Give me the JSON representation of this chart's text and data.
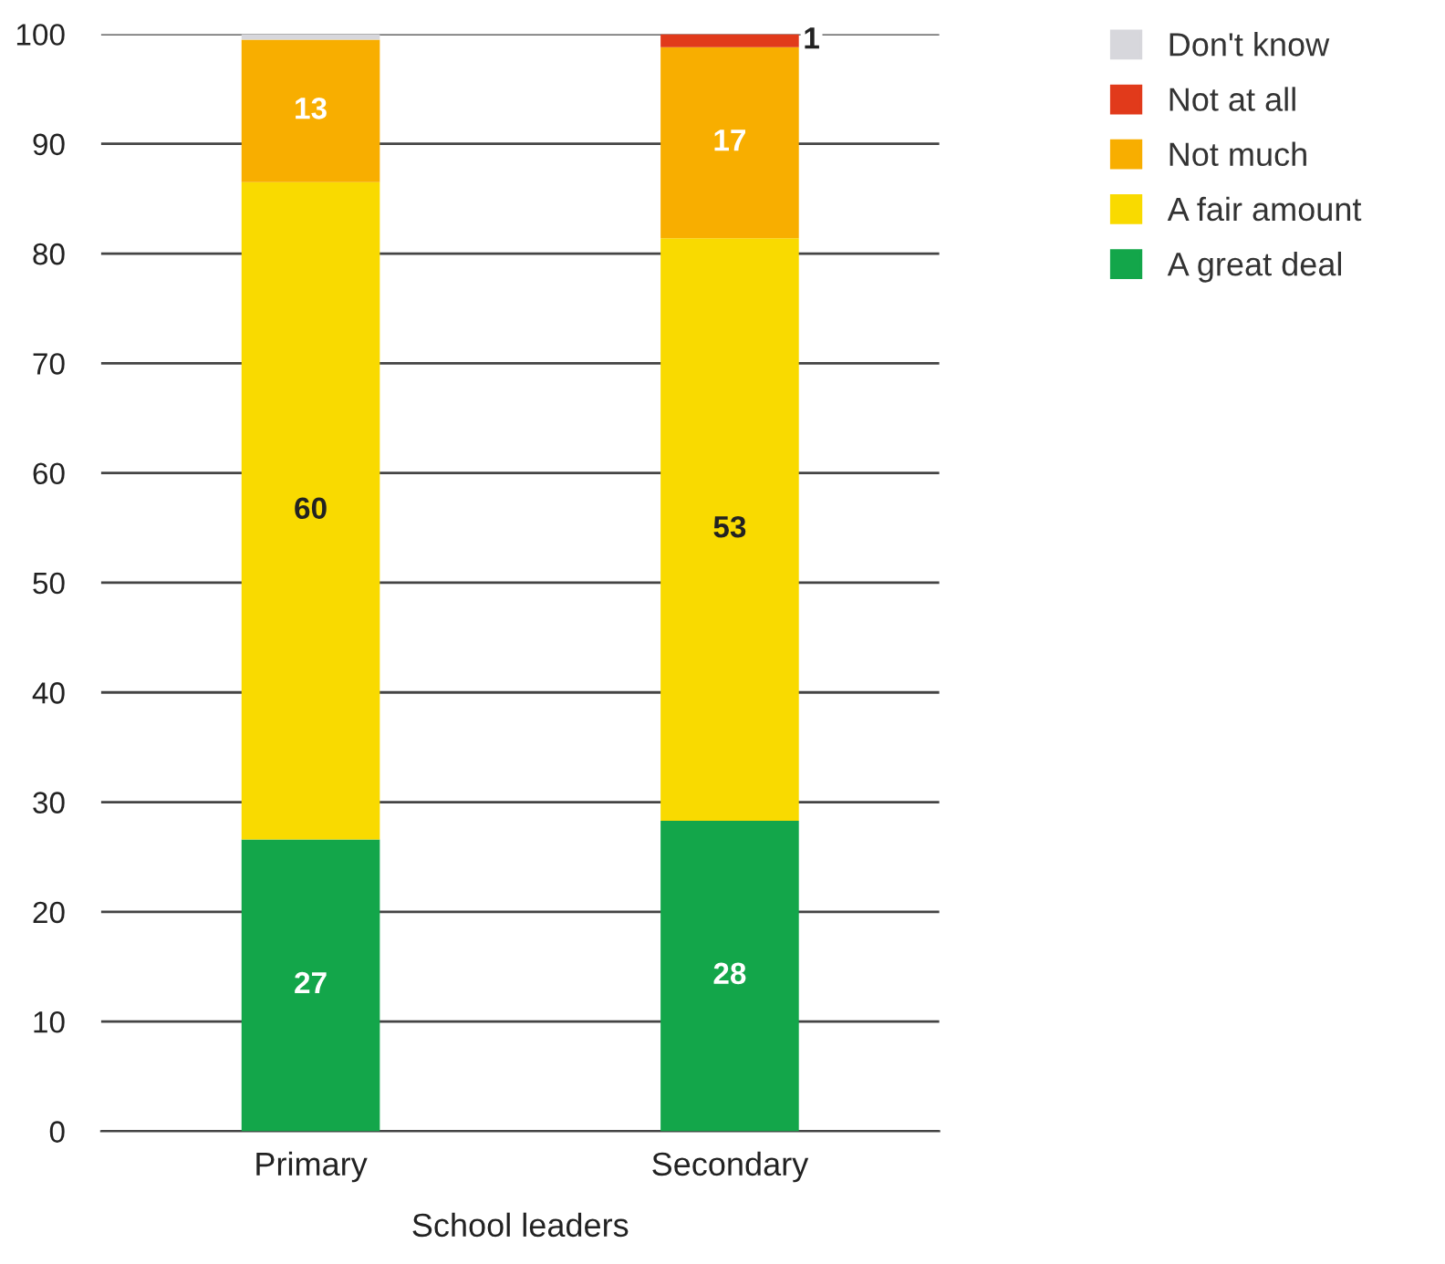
{
  "chart_data": {
    "type": "bar",
    "stacked": true,
    "xlabel": "School leaders",
    "categories": [
      "Primary",
      "Secondary"
    ],
    "series": [
      {
        "name": "A great deal",
        "color": "#13a64a",
        "values": [
          26.6,
          28.3
        ],
        "value_labels": [
          "27",
          "28"
        ]
      },
      {
        "name": "A fair amount",
        "color": "#f9da00",
        "values": [
          59.9,
          53.1
        ],
        "value_labels": [
          "60",
          "53"
        ]
      },
      {
        "name": "Not much",
        "color": "#f8ae00",
        "values": [
          13.0,
          17.4
        ],
        "value_labels": [
          "13",
          "17"
        ]
      },
      {
        "name": "Not at all",
        "color": "#e13a1b",
        "values": [
          0,
          1.2
        ],
        "value_labels": [
          null,
          "1"
        ]
      },
      {
        "name": "Don't know",
        "color": "#d7d7dc",
        "values": [
          0.5,
          0
        ],
        "value_labels": [
          null,
          null
        ]
      }
    ],
    "ylim": [
      0,
      100
    ],
    "yticks": [
      0,
      10,
      20,
      30,
      40,
      50,
      60,
      70,
      80,
      90,
      100
    ],
    "grid": "y",
    "legend": "top right"
  }
}
